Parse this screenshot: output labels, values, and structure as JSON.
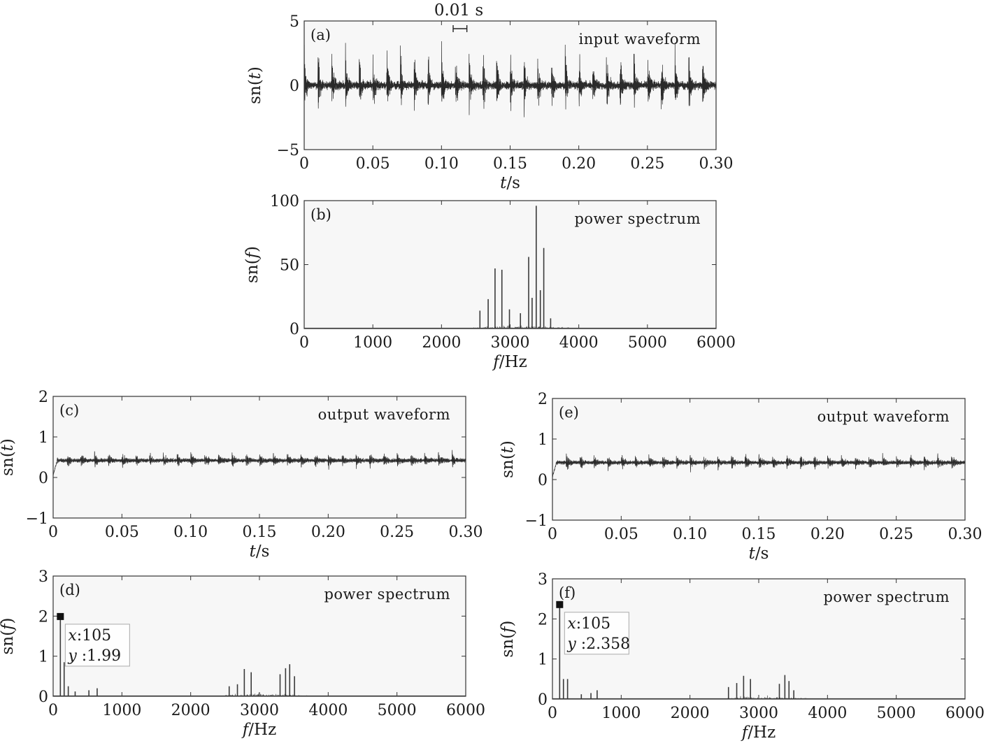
{
  "scale_bar": {
    "label": "0.01 s",
    "duration_s": 0.01,
    "near_time_s": 0.11
  },
  "chart_data": [
    {
      "id": "a",
      "label": "(a)",
      "type": "line",
      "title": "input waveform",
      "xlabel": "t/s",
      "ylabel": "sn(t)",
      "xlim": [
        0,
        0.3
      ],
      "ylim": [
        -5,
        5
      ],
      "xticks": [
        "0",
        "0.05",
        "0.10",
        "0.15",
        "0.20",
        "0.25",
        "0.30"
      ],
      "xtick_values": [
        0,
        0.05,
        0.1,
        0.15,
        0.2,
        0.25,
        0.3
      ],
      "yticks": [
        "−5",
        "0",
        "5"
      ],
      "ytick_values": [
        -5,
        0,
        5
      ],
      "signal": {
        "kind": "burst",
        "period_s": 0.01,
        "amplitude": 3.3,
        "baseline": 0,
        "noise": 0.35
      }
    },
    {
      "id": "b",
      "label": "(b)",
      "type": "bar",
      "title": "power spectrum",
      "xlabel": "f/Hz",
      "ylabel": "sn(f)",
      "xlim": [
        0,
        6000
      ],
      "ylim": [
        0,
        100
      ],
      "xticks": [
        "0",
        "1000",
        "2000",
        "3000",
        "4000",
        "5000",
        "6000"
      ],
      "xtick_values": [
        0,
        1000,
        2000,
        3000,
        4000,
        5000,
        6000
      ],
      "yticks": [
        "0",
        "50",
        "100"
      ],
      "ytick_values": [
        0,
        50,
        100
      ],
      "peaks": [
        {
          "f": 2560,
          "v": 14
        },
        {
          "f": 2680,
          "v": 23
        },
        {
          "f": 2780,
          "v": 47
        },
        {
          "f": 2880,
          "v": 46
        },
        {
          "f": 2990,
          "v": 15
        },
        {
          "f": 3150,
          "v": 12
        },
        {
          "f": 3270,
          "v": 56
        },
        {
          "f": 3320,
          "v": 24
        },
        {
          "f": 3380,
          "v": 96
        },
        {
          "f": 3440,
          "v": 30
        },
        {
          "f": 3490,
          "v": 63
        },
        {
          "f": 3590,
          "v": 8
        }
      ],
      "noise_band": [
        2400,
        3900
      ]
    },
    {
      "id": "c",
      "label": "(c)",
      "type": "line",
      "title": "output waveform",
      "xlabel": "t/s",
      "ylabel": "sn(t)",
      "xlim": [
        0,
        0.3
      ],
      "ylim": [
        -1,
        2
      ],
      "xticks": [
        "0",
        "0.05",
        "0.10",
        "0.15",
        "0.20",
        "0.25",
        "0.30"
      ],
      "xtick_values": [
        0,
        0.05,
        0.1,
        0.15,
        0.2,
        0.25,
        0.3
      ],
      "yticks": [
        "−1",
        "0",
        "1",
        "2"
      ],
      "ytick_values": [
        -1,
        0,
        1,
        2
      ],
      "signal": {
        "kind": "smooth",
        "period_s": 0.01,
        "amplitude": 0.25,
        "baseline": 0.42,
        "noise": 0.06
      }
    },
    {
      "id": "d",
      "label": "(d)",
      "type": "bar",
      "title": "power spectrum",
      "xlabel": "f/Hz",
      "ylabel": "sn(f)",
      "xlim": [
        0,
        6000
      ],
      "ylim": [
        0,
        3
      ],
      "xticks": [
        "0",
        "1000",
        "2000",
        "3000",
        "4000",
        "5000",
        "6000"
      ],
      "xtick_values": [
        0,
        1000,
        2000,
        3000,
        4000,
        5000,
        6000
      ],
      "yticks": [
        "0",
        "1",
        "2",
        "3"
      ],
      "ytick_values": [
        0,
        1,
        2,
        3
      ],
      "peaks": [
        {
          "f": 105,
          "v": 1.99
        },
        {
          "f": 160,
          "v": 0.85
        },
        {
          "f": 220,
          "v": 0.25
        },
        {
          "f": 320,
          "v": 0.12
        },
        {
          "f": 520,
          "v": 0.15
        },
        {
          "f": 640,
          "v": 0.2
        },
        {
          "f": 2560,
          "v": 0.25
        },
        {
          "f": 2680,
          "v": 0.3
        },
        {
          "f": 2780,
          "v": 0.68
        },
        {
          "f": 2880,
          "v": 0.6
        },
        {
          "f": 3300,
          "v": 0.55
        },
        {
          "f": 3380,
          "v": 0.7
        },
        {
          "f": 3440,
          "v": 0.8
        },
        {
          "f": 3510,
          "v": 0.5
        }
      ],
      "noise_band": [
        2400,
        3700
      ],
      "datatip": {
        "x": 105,
        "y": 1.99,
        "x_text": "x:105",
        "y_text": "y:1.99"
      }
    },
    {
      "id": "e",
      "label": "(e)",
      "type": "line",
      "title": "output waveform",
      "xlabel": "t/s",
      "ylabel": "sn(t)",
      "xlim": [
        0,
        0.3
      ],
      "ylim": [
        -1,
        2
      ],
      "xticks": [
        "0",
        "0.05",
        "0.10",
        "0.15",
        "0.20",
        "0.25",
        "0.30"
      ],
      "xtick_values": [
        0,
        0.05,
        0.1,
        0.15,
        0.2,
        0.25,
        0.3
      ],
      "yticks": [
        "−1",
        "0",
        "1",
        "2"
      ],
      "ytick_values": [
        -1,
        0,
        1,
        2
      ],
      "signal": {
        "kind": "smooth",
        "period_s": 0.01,
        "amplitude": 0.25,
        "baseline": 0.42,
        "noise": 0.06
      }
    },
    {
      "id": "f",
      "label": "(f)",
      "type": "bar",
      "title": "power spectrum",
      "xlabel": "f/Hz",
      "ylabel": "sn(f)",
      "xlim": [
        0,
        6000
      ],
      "ylim": [
        0,
        3
      ],
      "xticks": [
        "0",
        "1000",
        "2000",
        "3000",
        "4000",
        "5000",
        "6000"
      ],
      "xtick_values": [
        0,
        1000,
        2000,
        3000,
        4000,
        5000,
        6000
      ],
      "yticks": [
        "0",
        "1",
        "2",
        "3"
      ],
      "ytick_values": [
        0,
        1,
        2,
        3
      ],
      "peaks": [
        {
          "f": 105,
          "v": 2.358
        },
        {
          "f": 160,
          "v": 0.5
        },
        {
          "f": 220,
          "v": 0.5
        },
        {
          "f": 420,
          "v": 0.12
        },
        {
          "f": 560,
          "v": 0.15
        },
        {
          "f": 650,
          "v": 0.22
        },
        {
          "f": 2560,
          "v": 0.3
        },
        {
          "f": 2680,
          "v": 0.4
        },
        {
          "f": 2780,
          "v": 0.58
        },
        {
          "f": 2880,
          "v": 0.5
        },
        {
          "f": 3300,
          "v": 0.38
        },
        {
          "f": 3380,
          "v": 0.6
        },
        {
          "f": 3440,
          "v": 0.45
        },
        {
          "f": 3510,
          "v": 0.22
        }
      ],
      "noise_band": [
        2400,
        3700
      ],
      "datatip": {
        "x": 105,
        "y": 2.358,
        "x_text": "x:105",
        "y_text": "y:2.358"
      }
    }
  ]
}
